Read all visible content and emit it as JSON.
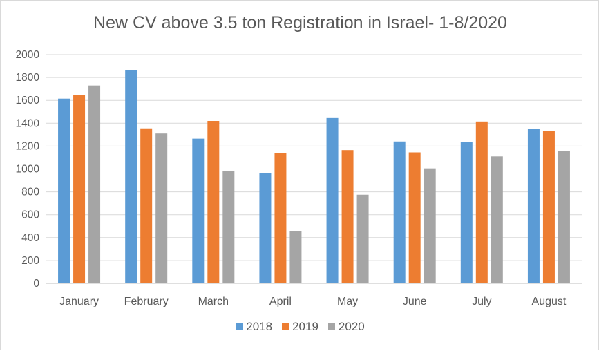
{
  "chart_data": {
    "type": "bar",
    "title": "New CV above 3.5 ton Registration in Israel- 1-8/2020",
    "xlabel": "",
    "ylabel": "",
    "ylim": [
      0,
      2000
    ],
    "yticks": [
      "0",
      "200",
      "400",
      "600",
      "800",
      "1000",
      "1200",
      "1400",
      "1600",
      "1800",
      "2000"
    ],
    "grid": true,
    "legend_position": "bottom",
    "categories": [
      "January",
      "February",
      "March",
      "April",
      "May",
      "June",
      "July",
      "August"
    ],
    "series": [
      {
        "name": "2018",
        "color": "#5b9bd5",
        "values": [
          1615,
          1865,
          1265,
          965,
          1445,
          1240,
          1235,
          1350
        ]
      },
      {
        "name": "2019",
        "color": "#ed7d31",
        "values": [
          1645,
          1355,
          1420,
          1140,
          1165,
          1145,
          1415,
          1335
        ]
      },
      {
        "name": "2020",
        "color": "#a5a5a5",
        "values": [
          1730,
          1310,
          985,
          455,
          775,
          1005,
          1110,
          1155
        ]
      }
    ]
  }
}
